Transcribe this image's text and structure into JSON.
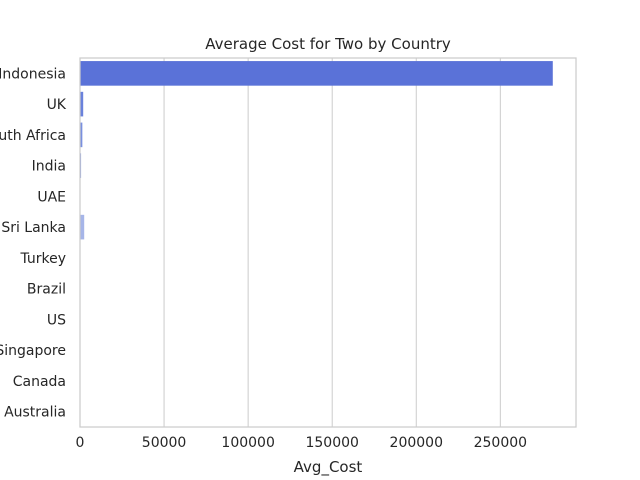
{
  "chart_data": {
    "type": "bar",
    "orientation": "horizontal",
    "title": "Average Cost for Two by Country",
    "xlabel": "Avg_Cost",
    "ylabel": "",
    "xlim": [
      0,
      295000
    ],
    "xticks": [
      0,
      50000,
      100000,
      150000,
      200000,
      250000
    ],
    "grid": true,
    "categories": [
      "Indonesia",
      "UK",
      "South Africa",
      "India",
      "UAE",
      "Sri Lanka",
      "Turkey",
      "Brazil",
      "US",
      "Singapore",
      "Canada",
      "Australia"
    ],
    "values": [
      281190,
      1900,
      1400,
      640,
      170,
      2500,
      95,
      130,
      27,
      155,
      36,
      25
    ],
    "colors": [
      "#5a72d8",
      "#6a82dc",
      "#7a90df",
      "#8a9de2",
      "#98a9e5",
      "#a6b5e8",
      "#b3c0eb",
      "#c0cbee",
      "#ccd5f1",
      "#d7def3",
      "#e0e6f5",
      "#e8ecf7"
    ]
  }
}
